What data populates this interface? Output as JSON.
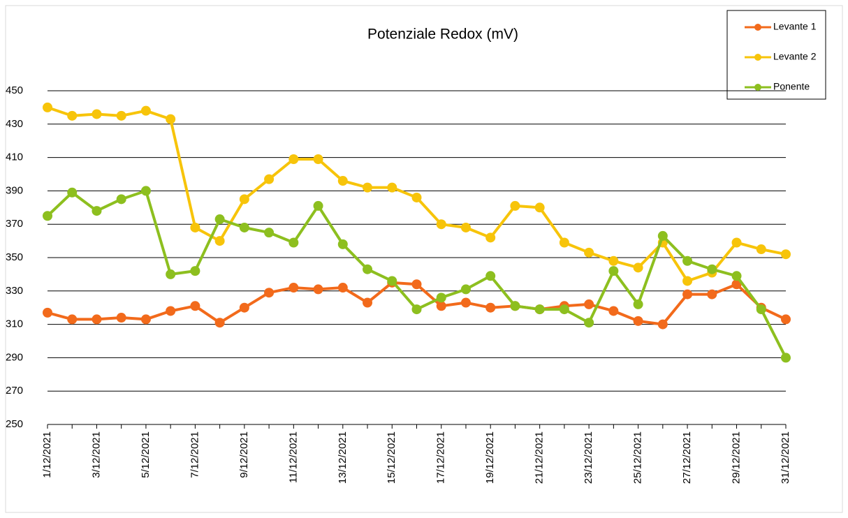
{
  "chart_data": {
    "type": "line",
    "title": "Potenziale Redox  (mV)",
    "categories": [
      "1/12/2021",
      null,
      "3/12/2021",
      null,
      "5/12/2021",
      null,
      "7/12/2021",
      null,
      "9/12/2021",
      null,
      "11/12/2021",
      null,
      "13/12/2021",
      null,
      "15/12/2021",
      null,
      "17/12/2021",
      null,
      "19/12/2021",
      null,
      "21/12/2021",
      null,
      "23/12/2021",
      null,
      "25/12/2021",
      null,
      "27/12/2021",
      null,
      "29/12/2021",
      null,
      "31/12/2021"
    ],
    "series": [
      {
        "name": "Levante 1",
        "color": "#f26a1b",
        "values": [
          317,
          313,
          313,
          314,
          313,
          318,
          321,
          311,
          320,
          329,
          332,
          331,
          332,
          323,
          335,
          334,
          321,
          323,
          320,
          321,
          319,
          321,
          322,
          318,
          312,
          310,
          328,
          328,
          334,
          320,
          313
        ]
      },
      {
        "name": "Levante 2",
        "color": "#f7c40a",
        "values": [
          440,
          435,
          436,
          435,
          438,
          433,
          368,
          360,
          385,
          397,
          409,
          409,
          396,
          392,
          392,
          386,
          370,
          368,
          362,
          381,
          380,
          359,
          353,
          348,
          344,
          359,
          336,
          341,
          359,
          355,
          352
        ]
      },
      {
        "name": "Ponente",
        "color": "#8dbf1f",
        "values": [
          375,
          389,
          378,
          385,
          390,
          340,
          342,
          373,
          368,
          365,
          359,
          381,
          358,
          343,
          336,
          319,
          326,
          331,
          339,
          321,
          319,
          319,
          311,
          342,
          322,
          363,
          348,
          343,
          339,
          319,
          290
        ]
      }
    ],
    "ylim": [
      250,
      450
    ],
    "yticks": [
      250,
      270,
      290,
      310,
      330,
      350,
      370,
      390,
      410,
      430,
      450
    ],
    "grid": true,
    "legend": "top-right"
  }
}
